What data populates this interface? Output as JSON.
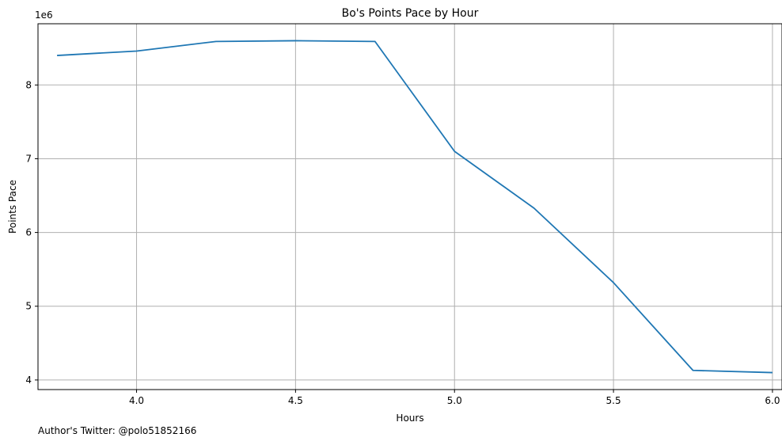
{
  "chart_data": {
    "type": "line",
    "title": "Bo's Points Pace by Hour",
    "xlabel": "Hours",
    "ylabel": "Points Pace",
    "y_offset_label": "1e6",
    "xlim": [
      3.69,
      6.03
    ],
    "ylim": [
      3.87,
      8.83
    ],
    "x_ticks": [
      4.0,
      4.5,
      5.0,
      5.5,
      6.0
    ],
    "x_tick_labels": [
      "4.0",
      "4.5",
      "5.0",
      "5.5",
      "6.0"
    ],
    "y_ticks": [
      4,
      5,
      6,
      7,
      8
    ],
    "y_tick_labels": [
      "4",
      "5",
      "6",
      "7",
      "8"
    ],
    "grid": true,
    "line_color": "#1f77b4",
    "grid_color": "#b0b0b0",
    "series": [
      {
        "x": [
          3.75,
          4.0,
          4.25,
          4.5,
          4.75,
          5.0,
          5.25,
          5.5,
          5.75,
          6.0
        ],
        "y": [
          8.4,
          8.46,
          8.59,
          8.6,
          8.59,
          7.1,
          6.33,
          5.32,
          4.13,
          4.1
        ]
      }
    ]
  },
  "footer": {
    "note": "Author's Twitter: @polo51852166"
  }
}
